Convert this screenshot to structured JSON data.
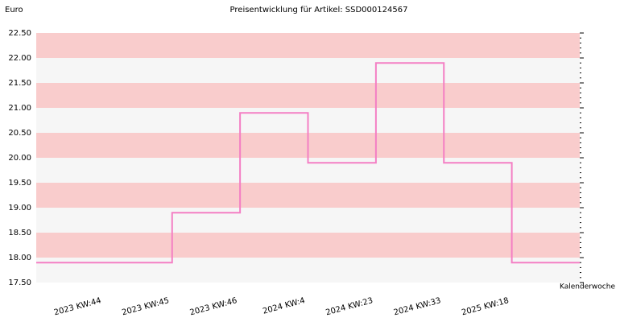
{
  "chart_data": {
    "type": "step-line",
    "title": "Preisentwicklung für Artikel: SSD000124567",
    "y_axis_label": "Euro",
    "x_axis_label": "Kalenderwoche",
    "categories": [
      "2023 KW:44",
      "2023 KW:45",
      "2023 KW:46",
      "2024 KW:4",
      "2024 KW:23",
      "2024 KW:33",
      "2025 KW:18"
    ],
    "values": [
      17.9,
      18.9,
      20.9,
      19.9,
      21.9,
      19.9,
      17.9
    ],
    "color": "#f47fc4",
    "band_colors": [
      "#f6f6f6",
      "#f9cccc"
    ],
    "ylim": [
      17.5,
      22.5
    ],
    "yticks": [
      {
        "value": 17.5,
        "label": "17.50"
      },
      {
        "value": 18,
        "label": "18.00"
      },
      {
        "value": 18.5,
        "label": "18.50"
      },
      {
        "value": 19,
        "label": "19.00"
      },
      {
        "value": 19.5,
        "label": "19.50"
      },
      {
        "value": 20,
        "label": "20.00"
      },
      {
        "value": 20.5,
        "label": "20.50"
      },
      {
        "value": 21,
        "label": "21.00"
      },
      {
        "value": 21.5,
        "label": "21.50"
      },
      {
        "value": 22,
        "label": "22.00"
      },
      {
        "value": 22.5,
        "label": "22.50"
      }
    ]
  }
}
